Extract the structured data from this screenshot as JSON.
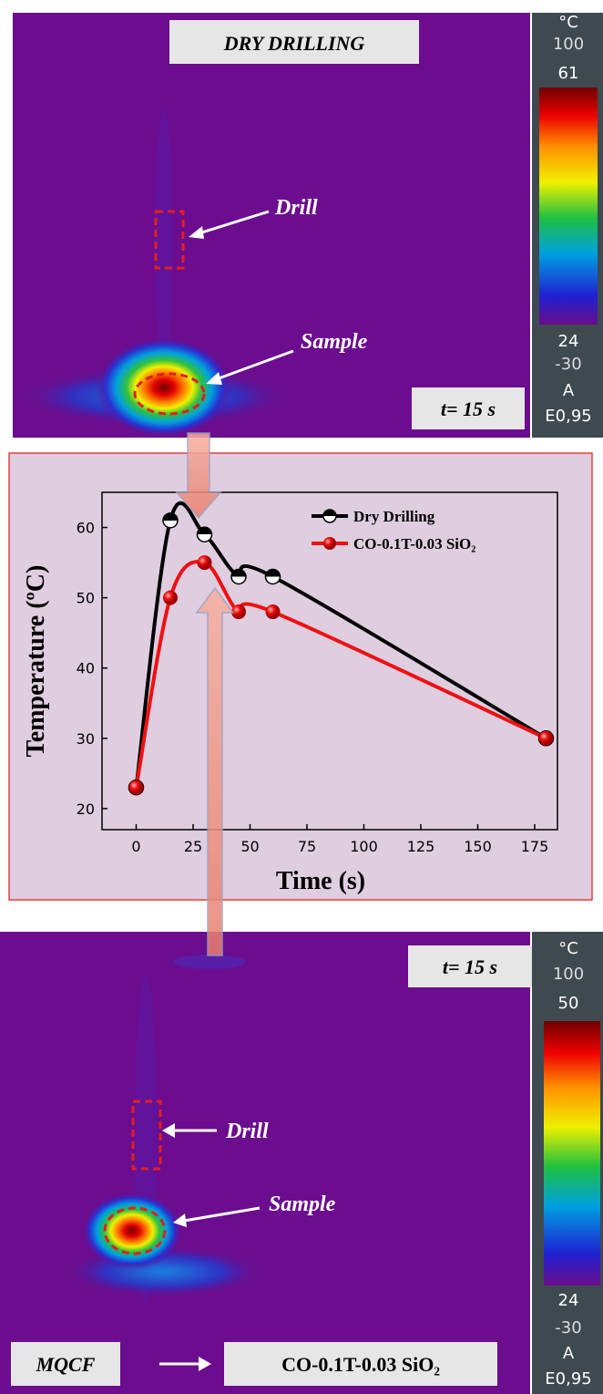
{
  "top_image": {
    "title": "DRY DRILLING",
    "drill_label": "Drill",
    "sample_label": "Sample",
    "time_label": "t= 15 s",
    "scale": {
      "unit": "°C",
      "max": "100",
      "high": "61",
      "low": "24",
      "min": "-30",
      "mode": "A",
      "emissivity": "E0,95"
    }
  },
  "chart_data": {
    "type": "line",
    "xlabel": "Time (s)",
    "ylabel": "Temperature (ºC)",
    "x": [
      0,
      15,
      30,
      45,
      60,
      180
    ],
    "series": [
      {
        "name": "Dry Drilling",
        "color": "#000000",
        "values": [
          23,
          61,
          59,
          53,
          53,
          30
        ]
      },
      {
        "name": "CO-0.1T-0.03 SiO₂",
        "color": "#ee1111",
        "values": [
          23,
          50,
          55,
          48,
          48,
          30
        ]
      }
    ],
    "xlim": [
      -15,
      185
    ],
    "xticks": [
      0,
      25,
      50,
      75,
      100,
      125,
      150,
      175
    ],
    "ylim": [
      17,
      65
    ],
    "yticks": [
      20,
      30,
      40,
      50,
      60
    ],
    "legend": "upper right"
  },
  "bottom_image": {
    "time_label": "t= 15 s",
    "drill_label": "Drill",
    "sample_label": "Sample",
    "method_label": "MQCF",
    "fluid_label": "CO-0.1T-0.03 SiO₂",
    "scale": {
      "unit": "°C",
      "max": "100",
      "high": "50",
      "low": "24",
      "min": "-30",
      "mode": "A",
      "emissivity": "E0,95"
    }
  }
}
